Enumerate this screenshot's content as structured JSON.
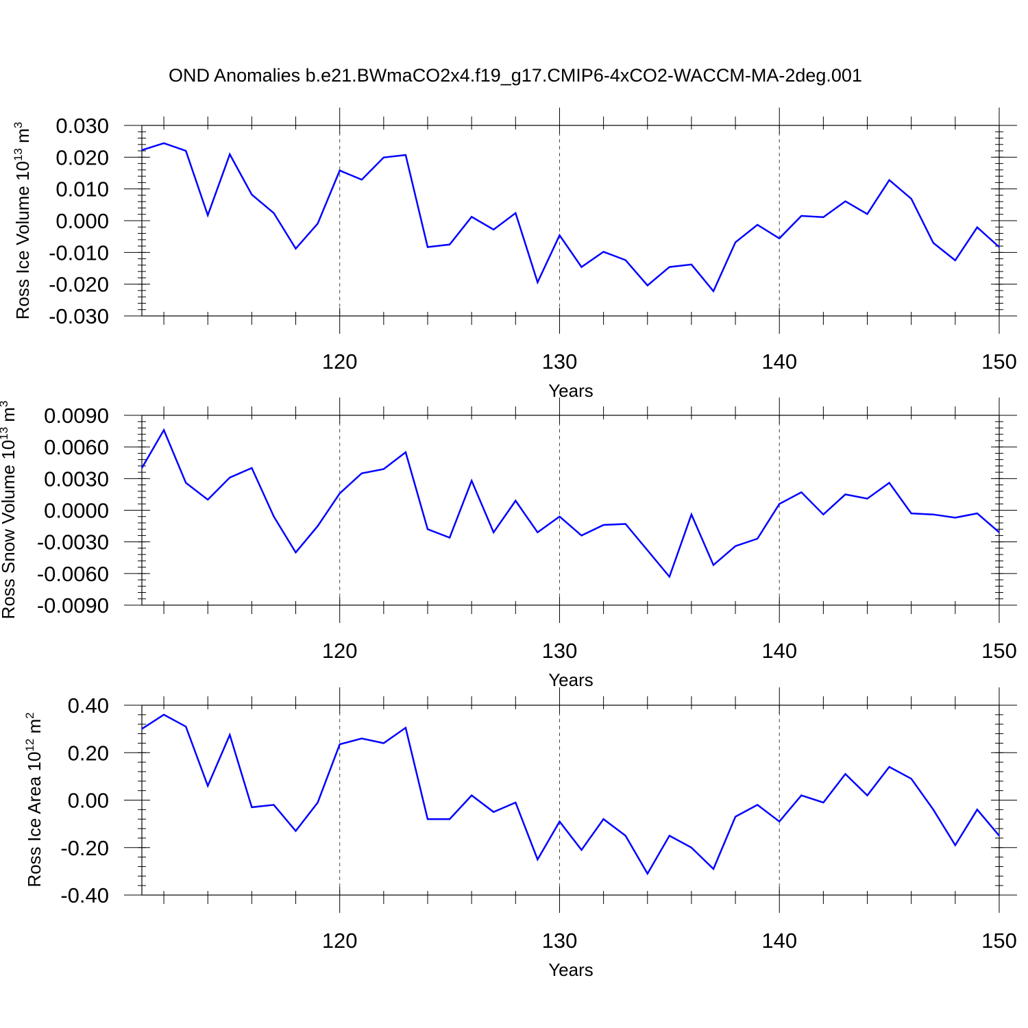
{
  "chart_data": [
    {
      "type": "line",
      "title": "OND Anomalies b.e21.BWmaCO2x4.f19_g17.CMIP6-4xCO2-WACCM-MA-2deg.001",
      "xlabel": "Years",
      "ylabel": "Ross Ice Volume 10",
      "ylabel_exp": "13",
      "ylabel_unit": " m",
      "ylabel_unit_exp": "3",
      "xlim": [
        111,
        150
      ],
      "ylim": [
        -0.03,
        0.03
      ],
      "x_ticks": [
        120,
        130,
        140,
        150
      ],
      "x_tick_labels": [
        "120",
        "130",
        "140",
        "150"
      ],
      "y_ticks": [
        0.03,
        0.02,
        0.01,
        0.0,
        -0.01,
        -0.02,
        -0.03
      ],
      "y_tick_labels": [
        "0.030",
        "0.020",
        "0.010",
        "0.000",
        "-0.010",
        "-0.020",
        "-0.030"
      ],
      "y_minor_step": 0.002,
      "grid_x": [
        120,
        130,
        140
      ],
      "series": [
        {
          "name": "Ross Ice Volume",
          "color": "#0000ff",
          "x": [
            111,
            112,
            113,
            114,
            115,
            116,
            117,
            118,
            119,
            120,
            121,
            122,
            123,
            124,
            125,
            126,
            127,
            128,
            129,
            130,
            131,
            132,
            133,
            134,
            135,
            136,
            137,
            138,
            139,
            140,
            141,
            142,
            143,
            144,
            145,
            146,
            147,
            148,
            149,
            150
          ],
          "values": [
            0.0222,
            0.0244,
            0.022,
            0.0017,
            0.0209,
            0.0082,
            0.0024,
            -0.0088,
            -0.0009,
            0.0158,
            0.0129,
            0.0199,
            0.0207,
            -0.0083,
            -0.0075,
            0.0012,
            -0.0028,
            0.0024,
            -0.0194,
            -0.0046,
            -0.0146,
            -0.0098,
            -0.0124,
            -0.0204,
            -0.0146,
            -0.0138,
            -0.0222,
            -0.0068,
            -0.0013,
            -0.0056,
            0.0015,
            0.0011,
            0.0061,
            0.0021,
            0.0128,
            0.0069,
            -0.007,
            -0.0125,
            -0.0021,
            -0.0083
          ]
        }
      ]
    },
    {
      "type": "line",
      "xlabel": "Years",
      "ylabel": "Ross Snow Volume 10",
      "ylabel_exp": "13",
      "ylabel_unit": " m",
      "ylabel_unit_exp": "3",
      "xlim": [
        111,
        150
      ],
      "ylim": [
        -0.009,
        0.009
      ],
      "x_ticks": [
        120,
        130,
        140,
        150
      ],
      "x_tick_labels": [
        "120",
        "130",
        "140",
        "150"
      ],
      "y_ticks": [
        0.009,
        0.006,
        0.003,
        0.0,
        -0.003,
        -0.006,
        -0.009
      ],
      "y_tick_labels": [
        "0.0090",
        "0.0060",
        "0.0030",
        "0.0000",
        "-0.0030",
        "-0.0060",
        "-0.0090"
      ],
      "y_minor_step": 0.0006,
      "grid_x": [
        120,
        130,
        140
      ],
      "series": [
        {
          "name": "Ross Snow Volume",
          "color": "#0000ff",
          "x": [
            111,
            112,
            113,
            114,
            115,
            116,
            117,
            118,
            119,
            120,
            121,
            122,
            123,
            124,
            125,
            126,
            127,
            128,
            129,
            130,
            131,
            132,
            133,
            134,
            135,
            136,
            137,
            138,
            139,
            140,
            141,
            142,
            143,
            144,
            145,
            146,
            147,
            148,
            149,
            150
          ],
          "values": [
            0.004,
            0.0076,
            0.0026,
            0.001,
            0.0031,
            0.004,
            -0.0006,
            -0.004,
            -0.0015,
            0.0016,
            0.0035,
            0.0039,
            0.0055,
            -0.0018,
            -0.0026,
            0.0028,
            -0.0021,
            0.0009,
            -0.0021,
            -0.0006,
            -0.0024,
            -0.0014,
            -0.0013,
            -0.0038,
            -0.0063,
            -0.0004,
            -0.0052,
            -0.0034,
            -0.0027,
            0.0006,
            0.0017,
            -0.0004,
            0.0015,
            0.0011,
            0.0026,
            -0.0003,
            -0.0004,
            -0.0007,
            -0.0003,
            -0.0021
          ]
        }
      ]
    },
    {
      "type": "line",
      "xlabel": "Years",
      "ylabel": "Ross Ice Area 10",
      "ylabel_exp": "12",
      "ylabel_unit": " m",
      "ylabel_unit_exp": "2",
      "xlim": [
        111,
        150
      ],
      "ylim": [
        -0.4,
        0.4
      ],
      "x_ticks": [
        120,
        130,
        140,
        150
      ],
      "x_tick_labels": [
        "120",
        "130",
        "140",
        "150"
      ],
      "y_ticks": [
        0.4,
        0.2,
        0.0,
        -0.2,
        -0.4
      ],
      "y_tick_labels": [
        "0.40",
        "0.20",
        "0.00",
        "-0.20",
        "-0.40"
      ],
      "y_minor_step": 0.04,
      "grid_x": [
        120,
        130,
        140
      ],
      "series": [
        {
          "name": "Ross Ice Area",
          "color": "#0000ff",
          "x": [
            111,
            112,
            113,
            114,
            115,
            116,
            117,
            118,
            119,
            120,
            121,
            122,
            123,
            124,
            125,
            126,
            127,
            128,
            129,
            130,
            131,
            132,
            133,
            134,
            135,
            136,
            137,
            138,
            139,
            140,
            141,
            142,
            143,
            144,
            145,
            146,
            147,
            148,
            149,
            150
          ],
          "values": [
            0.3,
            0.36,
            0.31,
            0.06,
            0.275,
            -0.03,
            -0.02,
            -0.13,
            -0.01,
            0.235,
            0.26,
            0.24,
            0.305,
            -0.08,
            -0.08,
            0.02,
            -0.05,
            -0.01,
            -0.25,
            -0.09,
            -0.21,
            -0.08,
            -0.15,
            -0.31,
            -0.15,
            -0.2,
            -0.29,
            -0.07,
            -0.02,
            -0.09,
            0.02,
            -0.01,
            0.11,
            0.02,
            0.14,
            0.09,
            -0.04,
            -0.19,
            -0.04,
            -0.15
          ]
        }
      ]
    }
  ]
}
